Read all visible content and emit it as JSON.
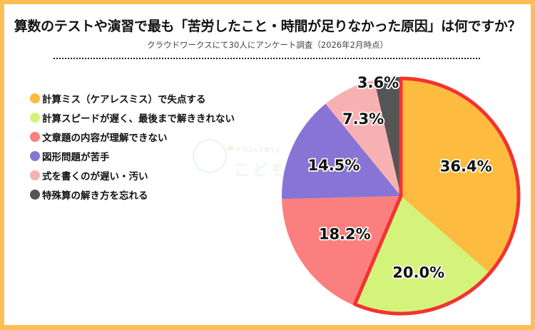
{
  "header": {
    "title": "算数のテストや演習で最も「苦労したこと・時間が足りなかった原因」は何ですか？",
    "subtitle": "クラウドワークスにて30人にアンケート調査（2026年2月時点）"
  },
  "watermark": {
    "tagline": "そろばんで育てる",
    "brand": "こどもそろ"
  },
  "legend": {
    "items": [
      {
        "label": "計算ミス（ケアレスミス）で失点する",
        "color": "#FDBB3F"
      },
      {
        "label": "計算スピードが遅く、最後まで解ききれない",
        "color": "#D4F37A"
      },
      {
        "label": "文章題の内容が理解できない",
        "color": "#FB7F7E"
      },
      {
        "label": "図形問題が苦手",
        "color": "#8874D5"
      },
      {
        "label": "式を書くのが遅い・汚い",
        "color": "#F8B1B3"
      },
      {
        "label": "特殊算の解き方を忘れる",
        "color": "#555555"
      }
    ]
  },
  "colors": {
    "frame": "#FFBE55",
    "highlight_outline": "#F43232"
  },
  "chart_data": {
    "type": "pie",
    "title": "算数のテストや演習で最も「苦労したこと・時間が足りなかった原因」は何ですか？",
    "subtitle": "クラウドワークスにて30人にアンケート調査（2026年2月時点）",
    "categories": [
      "計算ミス（ケアレスミス）で失点する",
      "計算スピードが遅く、最後まで解ききれない",
      "文章題の内容が理解できない",
      "図形問題が苦手",
      "式を書くのが遅い・汚い",
      "特殊算の解き方を忘れる"
    ],
    "values": [
      36.4,
      20.0,
      18.2,
      14.5,
      7.3,
      3.6
    ],
    "labels": [
      "36.4%",
      "20.0%",
      "18.2%",
      "14.5%",
      "7.3%",
      "3.6%"
    ],
    "colors": [
      "#FDBB3F",
      "#D4F37A",
      "#FB7F7E",
      "#8874D5",
      "#F8B1B3",
      "#555555"
    ],
    "start_angle": "12 o'clock, clockwise",
    "highlighted_slices": [
      0,
      1
    ],
    "legend_position": "left",
    "unit": "%"
  }
}
